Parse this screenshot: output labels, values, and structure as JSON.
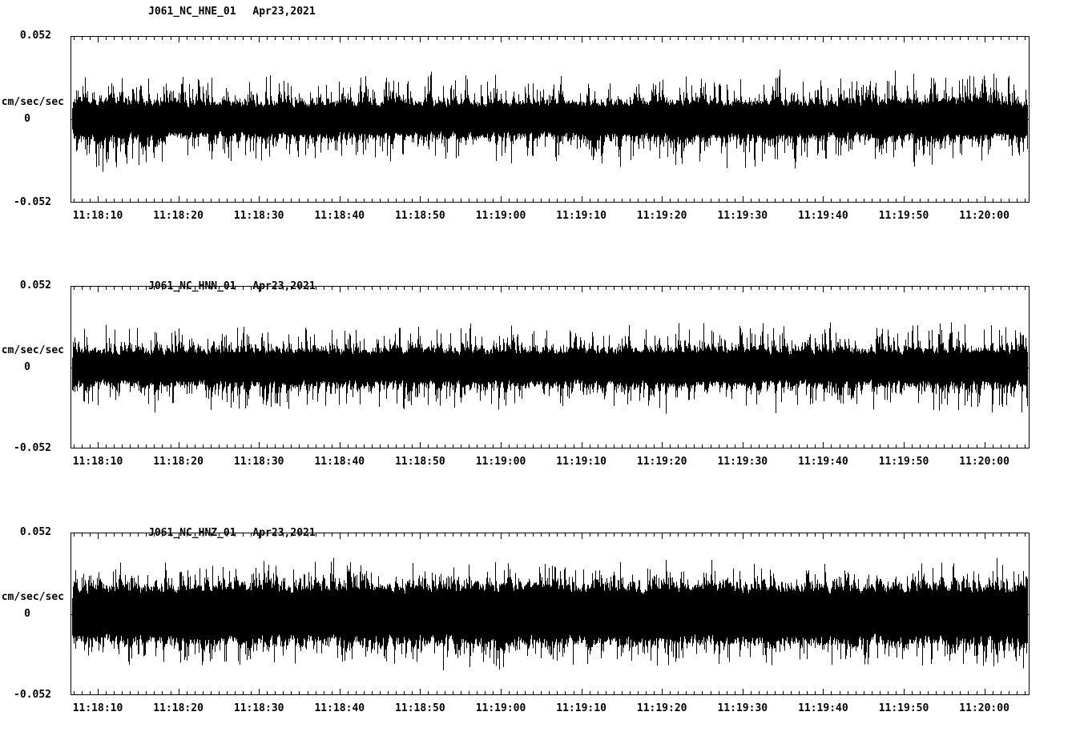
{
  "page": {
    "background_color": "#ffffff",
    "trace_color": "#000000"
  },
  "chart_data": [
    {
      "type": "line",
      "title": "J061_NC_HNE_01",
      "date": "Apr23,2021",
      "ylabel": "cm/sec/sec",
      "ylim": [
        -0.052,
        0.052
      ],
      "ytick_labels": [
        "0.052",
        "0",
        "-0.052"
      ],
      "xtick_labels": [
        "11:18:10",
        "11:18:20",
        "11:18:30",
        "11:18:40",
        "11:18:50",
        "11:19:00",
        "11:19:10",
        "11:19:20",
        "11:19:30",
        "11:19:40",
        "11:19:50",
        "11:20:00"
      ],
      "x_range": [
        "11:18:06",
        "11:20:06"
      ],
      "grid": false,
      "legend": "none",
      "series_color": "#000000",
      "noise_seed": 11,
      "band_fraction": 0.32,
      "envelope_peak_cm_s2": [
        0.036,
        0.03,
        0.029,
        0.03,
        0.029,
        0.03,
        0.031,
        0.033,
        0.031,
        0.03,
        0.035,
        0.031
      ]
    },
    {
      "type": "line",
      "title": "J061_NC_HNN_01",
      "date": "Apr23,2021",
      "ylabel": "cm/sec/sec",
      "ylim": [
        -0.052,
        0.052
      ],
      "ytick_labels": [
        "0.052",
        "0",
        "-0.052"
      ],
      "xtick_labels": [
        "11:18:10",
        "11:18:20",
        "11:18:30",
        "11:18:40",
        "11:18:50",
        "11:19:00",
        "11:19:10",
        "11:19:20",
        "11:19:30",
        "11:19:40",
        "11:19:50",
        "11:20:00"
      ],
      "x_range": [
        "11:18:06",
        "11:20:06"
      ],
      "grid": false,
      "legend": "none",
      "series_color": "#000000",
      "noise_seed": 22,
      "band_fraction": 0.33,
      "envelope_peak_cm_s2": [
        0.031,
        0.03,
        0.032,
        0.03,
        0.031,
        0.03,
        0.031,
        0.033,
        0.03,
        0.031,
        0.031,
        0.032
      ]
    },
    {
      "type": "line",
      "title": "J061_NC_HNZ_01",
      "date": "Apr23,2021",
      "ylabel": "cm/sec/sec",
      "ylim": [
        -0.052,
        0.052
      ],
      "ytick_labels": [
        "0.052",
        "0",
        "-0.052"
      ],
      "xtick_labels": [
        "11:18:10",
        "11:18:20",
        "11:18:30",
        "11:18:40",
        "11:18:50",
        "11:19:00",
        "11:19:10",
        "11:19:20",
        "11:19:30",
        "11:19:40",
        "11:19:50",
        "11:20:00"
      ],
      "x_range": [
        "11:18:06",
        "11:20:06"
      ],
      "grid": false,
      "legend": "none",
      "series_color": "#000000",
      "noise_seed": 33,
      "band_fraction": 0.46,
      "envelope_peak_cm_s2": [
        0.036,
        0.035,
        0.037,
        0.035,
        0.036,
        0.038,
        0.036,
        0.035,
        0.037,
        0.036,
        0.036,
        0.038
      ]
    }
  ]
}
